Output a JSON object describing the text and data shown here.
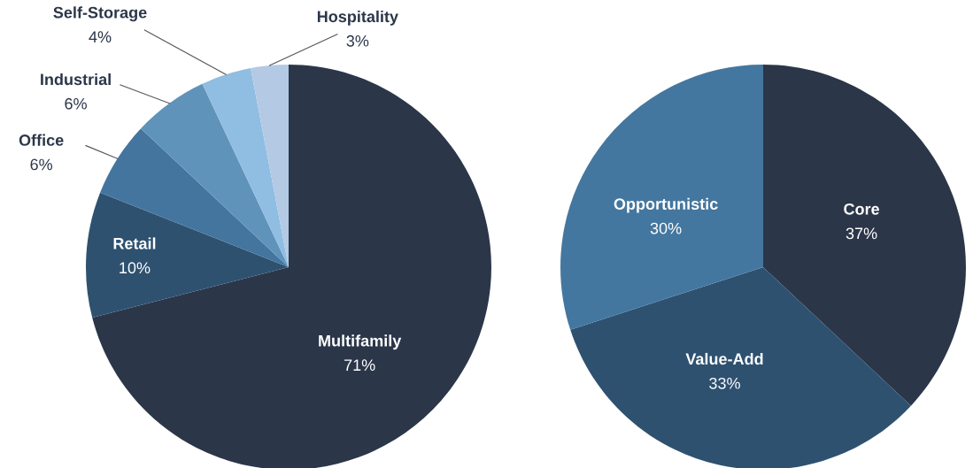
{
  "chart_data": [
    {
      "type": "pie",
      "categories": [
        "Multifamily",
        "Retail",
        "Office",
        "Industrial",
        "Self-Storage",
        "Hospitality"
      ],
      "values": [
        71,
        10,
        6,
        6,
        4,
        3
      ],
      "value_labels": [
        "71%",
        "10%",
        "6%",
        "6%",
        "4%",
        "3%"
      ],
      "colors": [
        "#2b3649",
        "#2e5170",
        "#44759e",
        "#6093ba",
        "#90bde2",
        "#b4c9e4"
      ]
    },
    {
      "type": "pie",
      "categories": [
        "Core",
        "Value-Add",
        "Opportunistic"
      ],
      "values": [
        37,
        33,
        30
      ],
      "value_labels": [
        "37%",
        "33%",
        "30%"
      ],
      "colors": [
        "#2b3649",
        "#2e5170",
        "#44779f"
      ]
    }
  ]
}
